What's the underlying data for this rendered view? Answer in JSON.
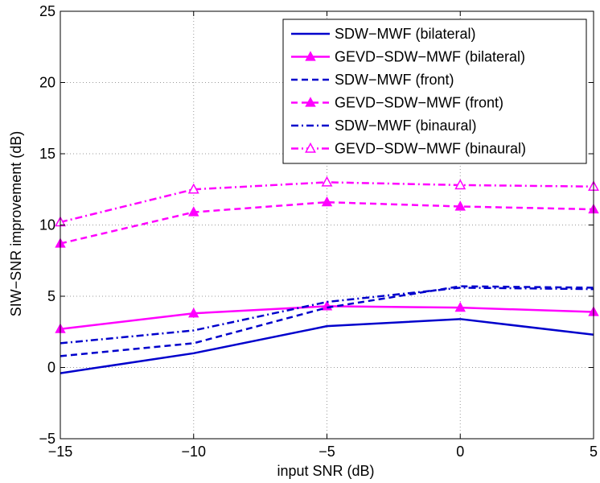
{
  "chart_data": {
    "type": "line",
    "title": "",
    "xlabel": "input SNR (dB)",
    "ylabel": "SIW−SNR improvement (dB)",
    "x": [
      -15,
      -10,
      -5,
      0,
      5
    ],
    "xlim": [
      -15,
      5
    ],
    "ylim": [
      -5,
      25
    ],
    "xticks": [
      "−15",
      "−10",
      "−5",
      "0",
      "5"
    ],
    "yticks": [
      "−5",
      "0",
      "5",
      "10",
      "15",
      "20",
      "25"
    ],
    "grid": true,
    "legend_position": "top-right",
    "series": [
      {
        "name": "SDW−MWF (bilateral)",
        "color": "#0000cc",
        "dash": "solid",
        "marker": "none",
        "values": [
          -0.4,
          1.0,
          2.9,
          3.4,
          2.3
        ]
      },
      {
        "name": "GEVD−SDW−MWF (bilateral)",
        "color": "#ff00ff",
        "dash": "solid",
        "marker": "filled-triangle",
        "values": [
          2.7,
          3.8,
          4.3,
          4.2,
          3.9
        ]
      },
      {
        "name": "SDW−MWF (front)",
        "color": "#0000cc",
        "dash": "dashed",
        "marker": "none",
        "values": [
          0.8,
          1.7,
          4.2,
          5.7,
          5.6
        ]
      },
      {
        "name": "GEVD−SDW−MWF (front)",
        "color": "#ff00ff",
        "dash": "dashed",
        "marker": "filled-triangle",
        "values": [
          8.7,
          10.9,
          11.6,
          11.3,
          11.1
        ]
      },
      {
        "name": "SDW−MWF (binaural)",
        "color": "#0000cc",
        "dash": "dashdot",
        "marker": "none",
        "values": [
          1.7,
          2.6,
          4.6,
          5.6,
          5.5
        ]
      },
      {
        "name": "GEVD−SDW−MWF (binaural)",
        "color": "#ff00ff",
        "dash": "dashdot",
        "marker": "open-triangle",
        "values": [
          10.2,
          12.5,
          13.0,
          12.8,
          12.7
        ]
      }
    ]
  }
}
